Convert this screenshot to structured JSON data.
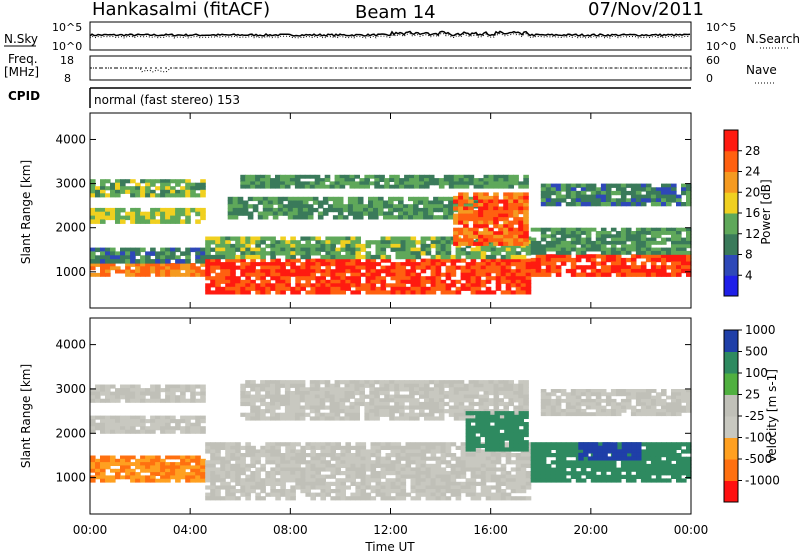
{
  "header": {
    "station": "Hankasalmi (fitACF)",
    "beam": "Beam 14",
    "date": "07/Nov/2011"
  },
  "top_panels": {
    "nsky_label": "N.Sky",
    "nsky_ticks": [
      "10^5",
      "10^0"
    ],
    "nsearch_label": "N.Search",
    "nsearch_ticks": [
      "10^5",
      "10^0"
    ],
    "freq_label": "Freq.",
    "freq_unit": "[MHz]",
    "freq_ticks": [
      "18",
      "8"
    ],
    "nave_label": "Nave",
    "nave_ticks": [
      "60",
      "0"
    ],
    "cpid_label": "CPID",
    "cpid_text": "normal (fast stereo) 153"
  },
  "x_axis": {
    "label": "Time UT",
    "ticks": [
      "00:00",
      "04:00",
      "08:00",
      "12:00",
      "16:00",
      "20:00",
      "00:00"
    ]
  },
  "colors": {
    "power_scale": [
      "#1f1fe8",
      "#2e48b8",
      "#3a7a5a",
      "#5fa85a",
      "#f0d020",
      "#f59a20",
      "#ff6010",
      "#ff1a10"
    ],
    "velocity_scale": [
      "#ff1010",
      "#ff7010",
      "#ffa020",
      "#c8c8c0",
      "#c0c0b8",
      "#50b040",
      "#2e8a60",
      "#1f3fa8"
    ]
  },
  "chart_data": [
    {
      "type": "heatmap",
      "title": "",
      "xlabel": "Time UT",
      "ylabel": "Slant Range [km]",
      "xlim": [
        0,
        24
      ],
      "ylim": [
        180,
        4600
      ],
      "yticks": [
        "1000",
        "2000",
        "3000",
        "4000"
      ],
      "colorbar": {
        "label": "Power [dB]",
        "ticks": [
          "4",
          "8",
          "12",
          "16",
          "20",
          "24",
          "28"
        ],
        "range": [
          0,
          32
        ]
      },
      "bands": [
        {
          "start": 0.0,
          "end": 4.6,
          "range_lo": 900,
          "range_hi": 1200,
          "value": 24
        },
        {
          "start": 0.0,
          "end": 4.6,
          "range_lo": 1200,
          "range_hi": 1550,
          "value": 10
        },
        {
          "start": 0.0,
          "end": 4.6,
          "range_lo": 2100,
          "range_hi": 2450,
          "value": 16
        },
        {
          "start": 0.0,
          "end": 4.6,
          "range_lo": 2700,
          "range_hi": 3100,
          "value": 14
        },
        {
          "start": 4.6,
          "end": 17.6,
          "range_lo": 500,
          "range_hi": 1300,
          "value": 28
        },
        {
          "start": 4.6,
          "end": 17.6,
          "range_lo": 1300,
          "range_hi": 1800,
          "value": 14
        },
        {
          "start": 5.5,
          "end": 15.5,
          "range_lo": 2200,
          "range_hi": 2700,
          "value": 12
        },
        {
          "start": 6.0,
          "end": 17.5,
          "range_lo": 2900,
          "range_hi": 3200,
          "value": 12
        },
        {
          "start": 14.5,
          "end": 17.5,
          "range_lo": 1600,
          "range_hi": 2800,
          "value": 26
        },
        {
          "start": 17.6,
          "end": 24.0,
          "range_lo": 900,
          "range_hi": 1400,
          "value": 28
        },
        {
          "start": 17.6,
          "end": 24.0,
          "range_lo": 1400,
          "range_hi": 2000,
          "value": 12
        },
        {
          "start": 18.0,
          "end": 24.0,
          "range_lo": 2500,
          "range_hi": 3000,
          "value": 10
        }
      ]
    },
    {
      "type": "heatmap",
      "title": "",
      "xlabel": "Time UT",
      "ylabel": "Slant Range [km]",
      "xlim": [
        0,
        24
      ],
      "ylim": [
        180,
        4600
      ],
      "yticks": [
        "1000",
        "2000",
        "3000",
        "4000"
      ],
      "colorbar": {
        "label": "Velocity [m s-1]",
        "ticks": [
          "1000",
          "500",
          "100",
          "25",
          "-25",
          "-100",
          "-500",
          "-1000"
        ]
      },
      "bands": [
        {
          "start": 0.0,
          "end": 4.6,
          "range_lo": 900,
          "range_hi": 1500,
          "value": -100
        },
        {
          "start": 0.0,
          "end": 4.6,
          "range_lo": 2000,
          "range_hi": 2400,
          "value": 0
        },
        {
          "start": 0.0,
          "end": 4.6,
          "range_lo": 2700,
          "range_hi": 3100,
          "value": 0
        },
        {
          "start": 4.6,
          "end": 17.6,
          "range_lo": 500,
          "range_hi": 1800,
          "value": 0
        },
        {
          "start": 6.0,
          "end": 17.5,
          "range_lo": 2300,
          "range_hi": 3200,
          "value": 0
        },
        {
          "start": 15.0,
          "end": 17.5,
          "range_lo": 1600,
          "range_hi": 2500,
          "value": 200
        },
        {
          "start": 17.6,
          "end": 24.0,
          "range_lo": 900,
          "range_hi": 1800,
          "value": 200
        },
        {
          "start": 19.5,
          "end": 22.0,
          "range_lo": 1400,
          "range_hi": 1800,
          "value": 800
        },
        {
          "start": 18.0,
          "end": 24.0,
          "range_lo": 2400,
          "range_hi": 3000,
          "value": 0
        }
      ]
    }
  ]
}
